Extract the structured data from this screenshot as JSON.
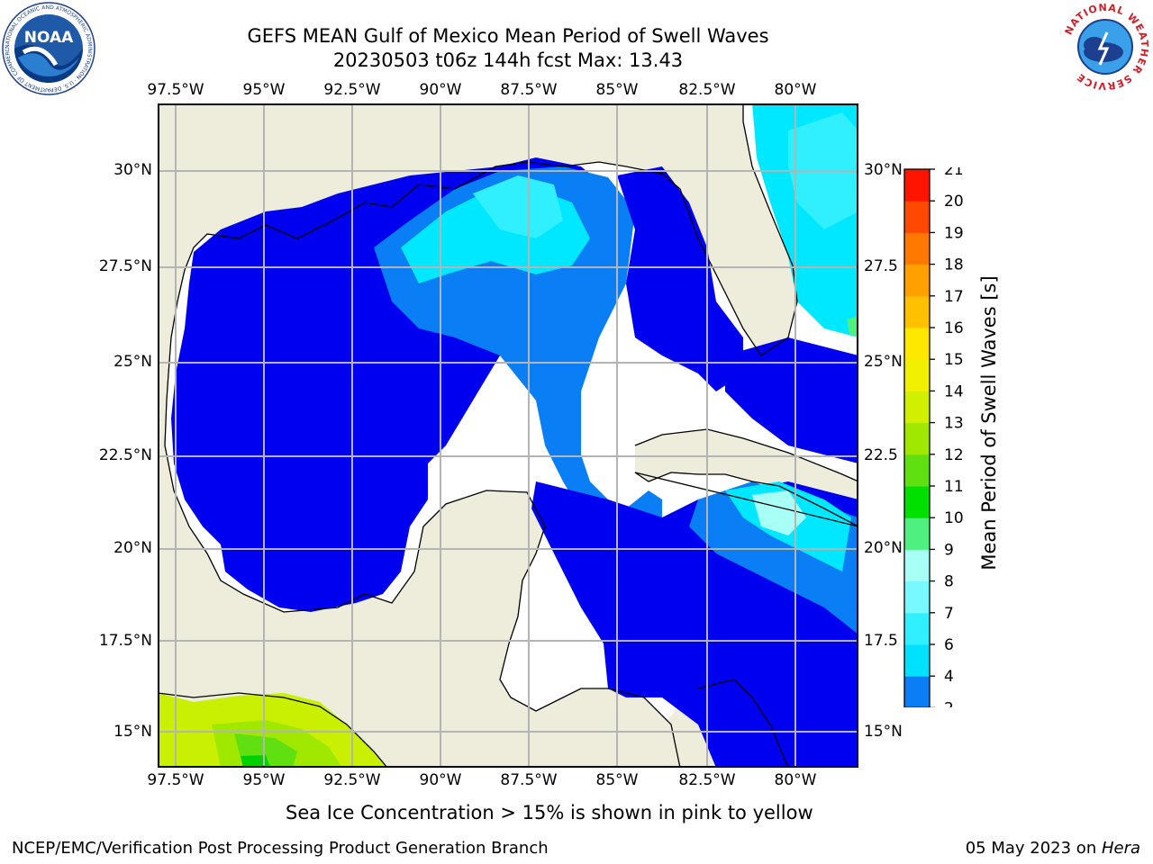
{
  "header": {
    "title_line1": "GEFS MEAN Gulf of Mexico Mean Period of Swell Waves",
    "title_line2": "20230503 t06z 144h fcst   Max: 13.43"
  },
  "logos": {
    "left_name": "NOAA",
    "left_ring_text": "NATIONAL OCEANIC AND ATMOSPHERIC ADMINISTRATION · U.S. DEPARTMENT OF COMMERCE",
    "right_ring_text": "NATIONAL WEATHER SERVICE"
  },
  "map": {
    "lon_ticks": [
      "97.5°W",
      "95°W",
      "92.5°W",
      "90°W",
      "87.5°W",
      "85°W",
      "82.5°W",
      "80°W"
    ],
    "lat_ticks_left": [
      "30°N",
      "27.5°N",
      "25°N",
      "22.5°N",
      "20°N",
      "17.5°N",
      "15°N"
    ],
    "lat_ticks_right": [
      "30°N",
      "27.5",
      "25°N",
      "22.5",
      "20°N",
      "17.5",
      "15°N"
    ],
    "colors": {
      "land": "#eeeddc",
      "ocean_nodata": "#ffffff",
      "grid": "#b4b4b4"
    }
  },
  "colorbar": {
    "label": "Mean Period of Swell Waves [s]",
    "ticks": [
      "2",
      "4",
      "6",
      "7",
      "8",
      "9",
      "10",
      "11",
      "12",
      "13",
      "14",
      "15",
      "16",
      "17",
      "18",
      "19",
      "20",
      "21"
    ],
    "colors": [
      "#0a7ff5",
      "#00e0ff",
      "#30f0ff",
      "#78f8ff",
      "#a8fff5",
      "#50f080",
      "#00e000",
      "#60e010",
      "#a0e800",
      "#d0f000",
      "#f0f000",
      "#ffe800",
      "#ffc000",
      "#ffa000",
      "#ff7800",
      "#ff4800",
      "#ff1400"
    ],
    "under_color": "#0000f0"
  },
  "footer": {
    "note": "Sea Ice Concentration > 15% is shown in pink to yellow",
    "credit": "NCEP/EMC/Verification Post Processing Product Generation Branch",
    "date": "05 May 2023 on ",
    "host": "Hera"
  }
}
